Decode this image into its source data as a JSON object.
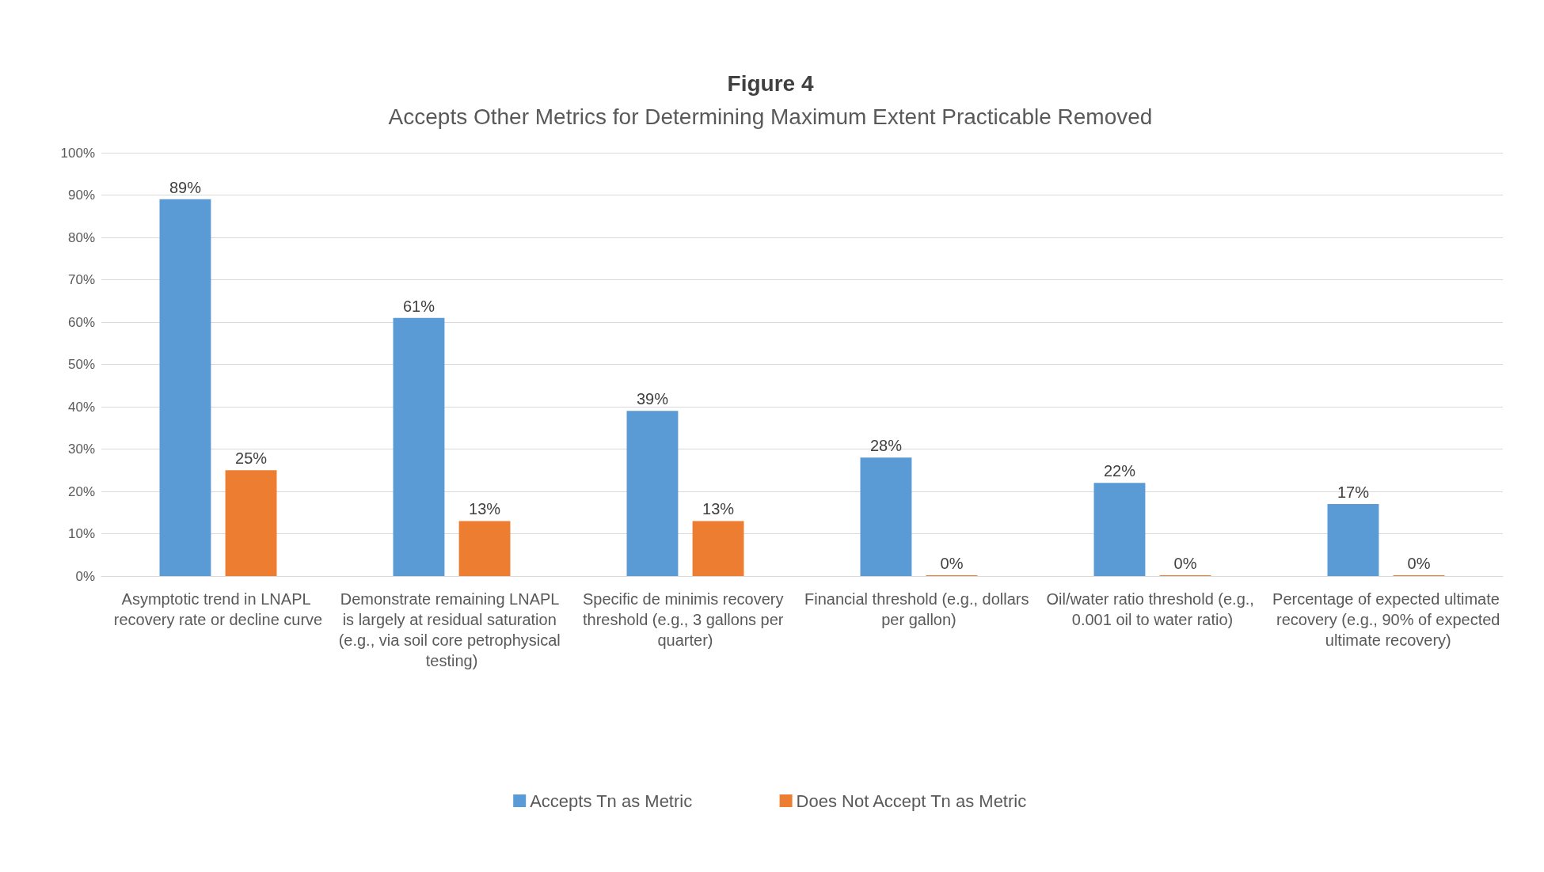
{
  "chart_data": {
    "type": "bar",
    "title": "Figure 4",
    "subtitle": "Accepts Other Metrics for Determining Maximum Extent Practicable Removed",
    "categories": [
      "Asymptotic trend in LNAPL recovery rate or decline curve",
      "Demonstrate remaining LNAPL is largely at residual saturation (e.g., via soil core petrophysical testing)",
      "Specific de minimis recovery threshold (e.g., 3 gallons per quarter)",
      "Financial threshold (e.g., dollars per gallon)",
      "Oil/water ratio threshold (e.g., 0.001 oil to water ratio)",
      "Percentage of expected ultimate recovery (e.g., 90% of expected ultimate recovery)"
    ],
    "series": [
      {
        "name": "Accepts Tn as Metric",
        "color": "#5b9bd5",
        "values": [
          89,
          61,
          39,
          28,
          22,
          17
        ],
        "value_labels": [
          "89%",
          "61%",
          "39%",
          "28%",
          "22%",
          "17%"
        ]
      },
      {
        "name": "Does Not Accept Tn as Metric",
        "color": "#ed7d31",
        "values": [
          25,
          13,
          13,
          0,
          0,
          0
        ],
        "value_labels": [
          "25%",
          "13%",
          "13%",
          "0%",
          "0%",
          "0%"
        ]
      }
    ],
    "ylim": [
      0,
      100
    ],
    "yticks": [
      {
        "value": 0,
        "label": "0%"
      },
      {
        "value": 10,
        "label": "10%"
      },
      {
        "value": 20,
        "label": "20%"
      },
      {
        "value": 30,
        "label": "30%"
      },
      {
        "value": 40,
        "label": "40%"
      },
      {
        "value": 50,
        "label": "50%"
      },
      {
        "value": 60,
        "label": "60%"
      },
      {
        "value": 70,
        "label": "70%"
      },
      {
        "value": 80,
        "label": "80%"
      },
      {
        "value": 90,
        "label": "90%"
      },
      {
        "value": 100,
        "label": "100%"
      }
    ],
    "grid": "y",
    "legend": "bottom"
  }
}
